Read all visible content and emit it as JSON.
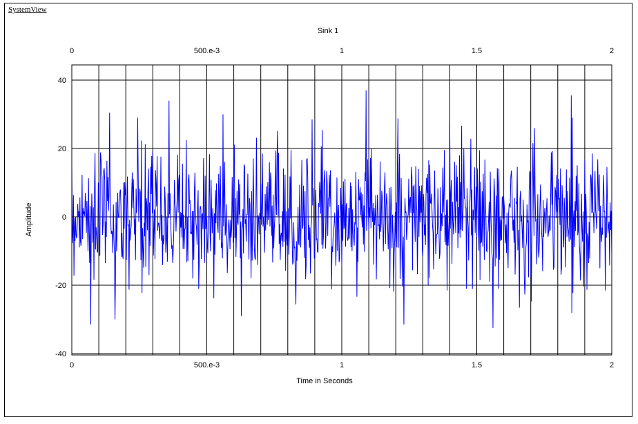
{
  "app": {
    "title": "SystemView"
  },
  "chart_data": {
    "type": "line",
    "title": "Sink 1",
    "xlabel": "Time in Seconds",
    "ylabel": "Amplitude",
    "xlim": [
      0,
      2
    ],
    "ylim": [
      -40,
      40
    ],
    "x_ticks": [
      0,
      0.5,
      1,
      1.5,
      2
    ],
    "x_tick_labels": [
      "0",
      "500.e-3",
      "1",
      "1.5",
      "2"
    ],
    "y_ticks": [
      40,
      20,
      0,
      -20,
      -40
    ],
    "y_tick_labels": [
      "40",
      "20",
      "0",
      "-20",
      "-40"
    ],
    "grid": true,
    "vertical_grid_step": 0.1,
    "series": [
      {
        "color": "#0000ff",
        "description": "Gaussian noise, approximately zero mean, std ~10, peaks near +/-35",
        "x_start": 0,
        "x_end": 2,
        "peaks": [
          {
            "x": 0.07,
            "y": 30.5
          },
          {
            "x": 0.07,
            "y": -31.5
          },
          {
            "x": 0.14,
            "y": 30.5
          },
          {
            "x": 0.36,
            "y": 34
          },
          {
            "x": 0.56,
            "y": 30
          },
          {
            "x": 0.89,
            "y": 28.5
          },
          {
            "x": 1.09,
            "y": 37
          },
          {
            "x": 1.85,
            "y": 35.5
          },
          {
            "x": 1.56,
            "y": -32.5
          },
          {
            "x": 1.23,
            "y": -31.5
          },
          {
            "x": 0.16,
            "y": -30
          }
        ]
      }
    ]
  }
}
